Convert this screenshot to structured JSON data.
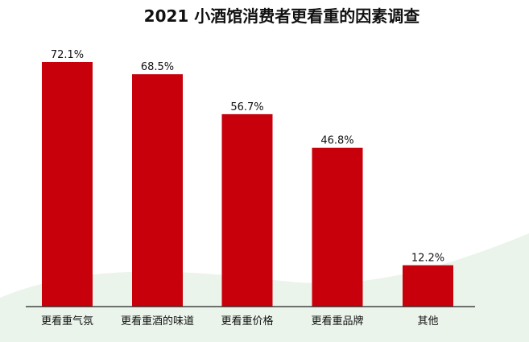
{
  "chart_data": {
    "type": "bar",
    "title": "2021 小酒馆消费者更看重的因素调查",
    "categories": [
      "更看重气氛",
      "更看重酒的味道",
      "更看重价格",
      "更看重品牌",
      "其他"
    ],
    "values": [
      72.1,
      68.5,
      56.7,
      46.8,
      12.2
    ],
    "value_labels": [
      "72.1%",
      "68.5%",
      "56.7%",
      "46.8%",
      "12.2%"
    ],
    "unit": "%",
    "xlabel": "",
    "ylabel": "",
    "ylim": [
      0,
      75
    ],
    "grid": false,
    "legend": "none"
  },
  "colors": {
    "bar": "#c8000b",
    "background_band": "#eaf4ea",
    "axis": "#222222",
    "text": "#111111"
  }
}
